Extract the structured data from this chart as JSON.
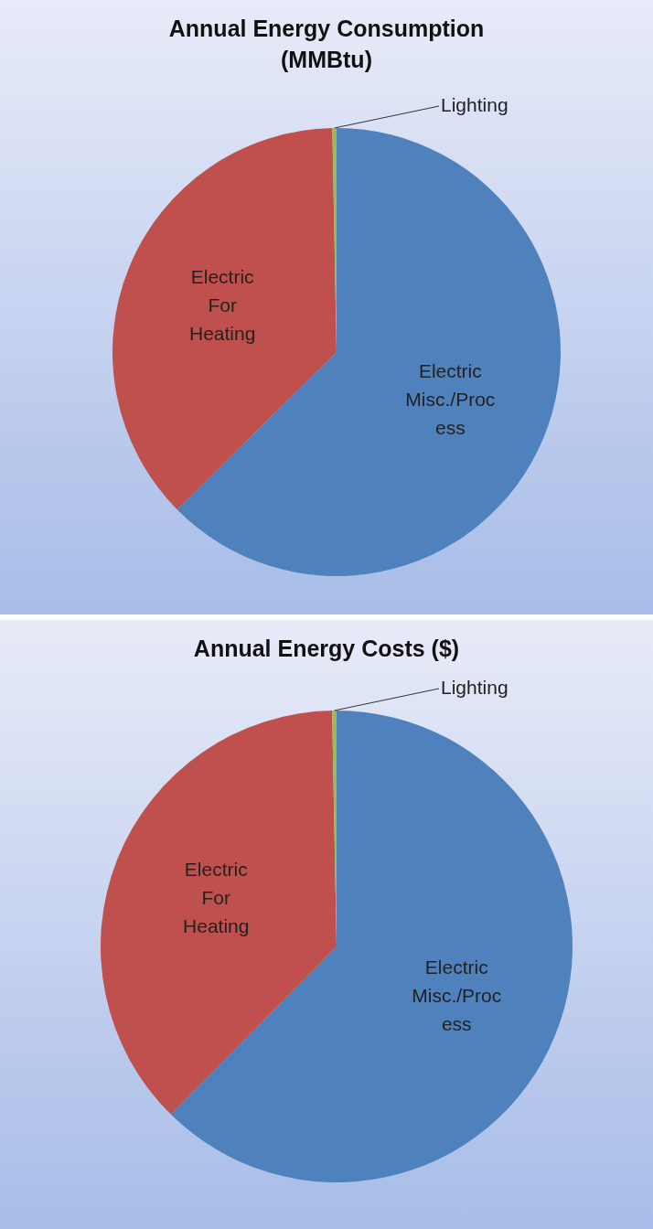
{
  "chart_data": [
    {
      "type": "pie",
      "title": "Annual Energy Consumption (MMBtu)",
      "categories": [
        "Electric Misc./Process",
        "Electric For Heating",
        "Lighting"
      ],
      "values": [
        62.6,
        37.1,
        0.3
      ],
      "colors": [
        "#4f81bd",
        "#c0504d",
        "#9bbb59"
      ]
    },
    {
      "type": "pie",
      "title": "Annual Energy Costs ($)",
      "categories": [
        "Electric Misc./Process",
        "Electric For Heating",
        "Lighting"
      ],
      "values": [
        62.4,
        37.3,
        0.3
      ],
      "colors": [
        "#4f81bd",
        "#c0504d",
        "#9bbb59"
      ]
    }
  ]
}
